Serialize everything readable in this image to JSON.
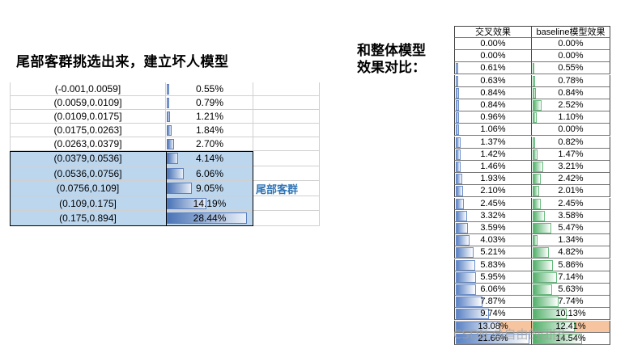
{
  "left_title": "尾部客群挑选出来，建立坏人模型",
  "right_title_lines": [
    "和整体模型",
    "效果对比："
  ],
  "tail_label": "尾部客群",
  "left_rows": [
    {
      "range": "(-0.001,0.0059]",
      "value": "0.55%",
      "pct": 0.55
    },
    {
      "range": "(0.0059,0.0109]",
      "value": "0.79%",
      "pct": 0.79
    },
    {
      "range": "(0.0109,0.0175]",
      "value": "1.21%",
      "pct": 1.21
    },
    {
      "range": "(0.0175,0.0263]",
      "value": "1.84%",
      "pct": 1.84
    },
    {
      "range": "(0.0263,0.0379]",
      "value": "2.70%",
      "pct": 2.7
    },
    {
      "range": "(0.0379,0.0536]",
      "value": "4.14%",
      "pct": 4.14
    },
    {
      "range": "(0.0536,0.0756]",
      "value": "6.06%",
      "pct": 6.06
    },
    {
      "range": "(0.0756,0.109]",
      "value": "9.05%",
      "pct": 9.05
    },
    {
      "range": "(0.109,0.175]",
      "value": "14.19%",
      "pct": 14.19
    },
    {
      "range": "(0.175,0.894]",
      "value": "28.44%",
      "pct": 28.44
    }
  ],
  "right_headers": [
    "交叉效果",
    "baseline模型效果"
  ],
  "right_rows": [
    {
      "a": "0.00%",
      "b": "0.00%",
      "ap": 0.0,
      "bp": 0.0
    },
    {
      "a": "0.00%",
      "b": "0.00%",
      "ap": 0.0,
      "bp": 0.0
    },
    {
      "a": "0.61%",
      "b": "0.55%",
      "ap": 0.61,
      "bp": 0.55
    },
    {
      "a": "0.63%",
      "b": "0.78%",
      "ap": 0.63,
      "bp": 0.78
    },
    {
      "a": "0.84%",
      "b": "0.84%",
      "ap": 0.84,
      "bp": 0.84
    },
    {
      "a": "0.84%",
      "b": "2.52%",
      "ap": 0.84,
      "bp": 2.52
    },
    {
      "a": "0.96%",
      "b": "1.10%",
      "ap": 0.96,
      "bp": 1.1
    },
    {
      "a": "1.06%",
      "b": "0.00%",
      "ap": 1.06,
      "bp": 0.0
    },
    {
      "a": "1.37%",
      "b": "0.82%",
      "ap": 1.37,
      "bp": 0.82
    },
    {
      "a": "1.42%",
      "b": "1.47%",
      "ap": 1.42,
      "bp": 1.47
    },
    {
      "a": "1.46%",
      "b": "3.21%",
      "ap": 1.46,
      "bp": 3.21
    },
    {
      "a": "1.93%",
      "b": "2.42%",
      "ap": 1.93,
      "bp": 2.42
    },
    {
      "a": "2.10%",
      "b": "2.01%",
      "ap": 2.1,
      "bp": 2.01
    },
    {
      "a": "2.45%",
      "b": "2.45%",
      "ap": 2.45,
      "bp": 2.45
    },
    {
      "a": "3.32%",
      "b": "3.58%",
      "ap": 3.32,
      "bp": 3.58
    },
    {
      "a": "3.59%",
      "b": "5.47%",
      "ap": 3.59,
      "bp": 5.47
    },
    {
      "a": "4.03%",
      "b": "1.34%",
      "ap": 4.03,
      "bp": 1.34
    },
    {
      "a": "5.21%",
      "b": "4.82%",
      "ap": 5.21,
      "bp": 4.82
    },
    {
      "a": "5.83%",
      "b": "5.86%",
      "ap": 5.83,
      "bp": 5.86
    },
    {
      "a": "5.95%",
      "b": "7.14%",
      "ap": 5.95,
      "bp": 7.14
    },
    {
      "a": "6.06%",
      "b": "5.63%",
      "ap": 6.06,
      "bp": 5.63
    },
    {
      "a": "7.87%",
      "b": "7.74%",
      "ap": 7.87,
      "bp": 7.74
    },
    {
      "a": "9.74%",
      "b": "10.13%",
      "ap": 9.74,
      "bp": 10.13
    },
    {
      "a": "13.08%",
      "b": "12.41%",
      "ap": 13.08,
      "bp": 12.41
    },
    {
      "a": "21.66%",
      "b": "14.54%",
      "ap": 21.66,
      "bp": 14.54
    }
  ],
  "watermark": "CSDN @自由的团团",
  "colors": {
    "left_bar": "#4a74b6",
    "highlight": "#bcd6ee",
    "right_a": "#5a82c4",
    "right_b": "#52b06a",
    "tail_label": "#2f74b5",
    "orange_row": "#f6c49f"
  }
}
